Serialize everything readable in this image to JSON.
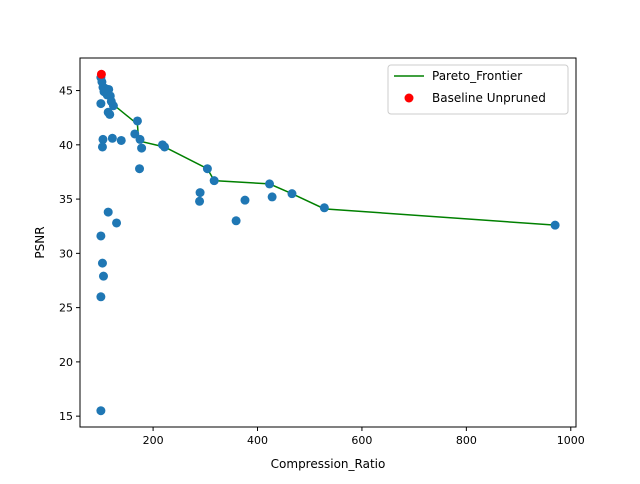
{
  "chart_data": {
    "type": "scatter",
    "title": "",
    "xlabel": "Compression_Ratio",
    "ylabel": "PSNR",
    "xlim": [
      60,
      1010
    ],
    "ylim": [
      14.0,
      48.0
    ],
    "xticks": [
      200,
      400,
      600,
      800,
      1000
    ],
    "yticks": [
      15,
      20,
      25,
      30,
      35,
      40,
      45
    ],
    "grid": false,
    "legend_position": "top-right",
    "colors": {
      "scatter": "#1f77b4",
      "frontier": "#008000",
      "baseline": "#ff0000"
    },
    "series": [
      {
        "name": "Pareto_Frontier",
        "kind": "line",
        "points": [
          [
            100,
            46.2
          ],
          [
            104,
            45.7
          ],
          [
            108,
            45.3
          ],
          [
            113,
            44.8
          ],
          [
            118,
            44.2
          ],
          [
            124,
            43.7
          ],
          [
            170,
            41.9
          ],
          [
            172,
            40.6
          ],
          [
            178,
            40.3
          ],
          [
            222,
            39.8
          ],
          [
            304,
            37.8
          ],
          [
            317,
            36.7
          ],
          [
            423,
            36.4
          ],
          [
            466,
            35.5
          ],
          [
            528,
            34.1
          ],
          [
            970,
            32.6
          ]
        ]
      },
      {
        "name": "",
        "kind": "scatter",
        "points": [
          [
            100,
            46.2
          ],
          [
            102,
            45.8
          ],
          [
            104,
            45.3
          ],
          [
            106,
            44.9
          ],
          [
            108,
            45.2
          ],
          [
            112,
            44.6
          ],
          [
            115,
            45.1
          ],
          [
            118,
            44.5
          ],
          [
            120,
            44.0
          ],
          [
            124,
            43.6
          ],
          [
            100,
            43.8
          ],
          [
            114,
            43.0
          ],
          [
            117,
            42.8
          ],
          [
            170,
            42.2
          ],
          [
            104,
            40.5
          ],
          [
            103,
            39.8
          ],
          [
            122,
            40.6
          ],
          [
            139,
            40.4
          ],
          [
            165,
            41.0
          ],
          [
            175,
            40.5
          ],
          [
            178,
            39.7
          ],
          [
            218,
            40.0
          ],
          [
            222,
            39.8
          ],
          [
            174,
            37.8
          ],
          [
            304,
            37.8
          ],
          [
            317,
            36.7
          ],
          [
            290,
            35.6
          ],
          [
            289,
            34.8
          ],
          [
            376,
            34.9
          ],
          [
            423,
            36.4
          ],
          [
            428,
            35.2
          ],
          [
            466,
            35.5
          ],
          [
            528,
            34.2
          ],
          [
            359,
            33.0
          ],
          [
            114,
            33.8
          ],
          [
            130,
            32.8
          ],
          [
            100,
            31.6
          ],
          [
            103,
            29.1
          ],
          [
            105,
            27.9
          ],
          [
            100,
            26.0
          ],
          [
            100,
            15.5
          ],
          [
            970,
            32.6
          ]
        ]
      },
      {
        "name": "Baseline Unpruned",
        "kind": "scatter",
        "points": [
          [
            101,
            46.5
          ]
        ]
      }
    ]
  }
}
